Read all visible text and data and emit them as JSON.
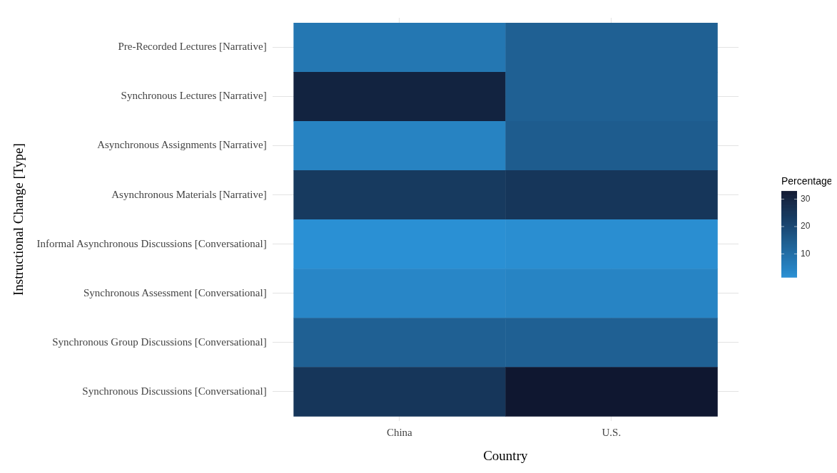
{
  "chart_data": {
    "type": "heatmap",
    "xlabel": "Country",
    "ylabel": "Instructional Change [Type]",
    "clabel": "Percentage",
    "categories": [
      "China",
      "U.S."
    ],
    "y_categories": [
      "Pre-Recorded Lectures [Narrative]",
      "Synchronous Lectures [Narrative]",
      "Asynchronous Assignments [Narrative]",
      "Asynchronous Materials [Narrative]",
      "Informal Asynchronous Discussions [Conversational]",
      "Synchronous Assessment [Conversational]",
      "Synchronous Group Discussions [Conversational]",
      "Synchronous Discussions [Conversational]"
    ],
    "cells": [
      [
        8,
        14
      ],
      [
        30,
        14
      ],
      [
        5,
        15
      ],
      [
        24,
        25
      ],
      [
        1.5,
        2
      ],
      [
        4,
        4.5
      ],
      [
        14,
        14
      ],
      [
        25,
        33
      ]
    ],
    "clim": [
      1.5,
      33
    ],
    "cticks": [
      10,
      20,
      30
    ],
    "colors": [
      "#2a90d4",
      "#0f1730"
    ],
    "grid": true
  }
}
